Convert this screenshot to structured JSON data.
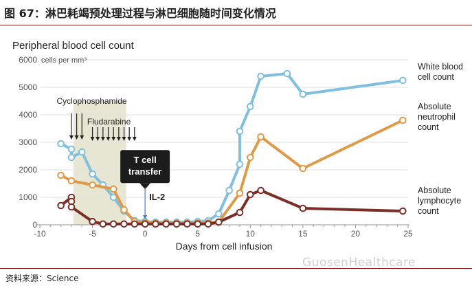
{
  "header": {
    "title": "图 67：淋巴耗竭预处理过程与淋巴细胞随时间变化情况"
  },
  "source": {
    "label": "资料来源：Science"
  },
  "watermark": {
    "text": "GuosenHealthcare"
  },
  "chart_data": {
    "type": "line",
    "title": "Peripheral blood cell count",
    "unit_label": "cells per mm³",
    "xlabel": "Days from cell infusion",
    "xlim": [
      -10,
      25
    ],
    "ylim": [
      0,
      6000
    ],
    "xticks": [
      -10,
      -5,
      0,
      5,
      10,
      15,
      20,
      25
    ],
    "xtick_labels": [
      "-10",
      "-5",
      "0",
      "5",
      "10",
      "15",
      "20",
      "25"
    ],
    "yticks": [
      0,
      1000,
      2000,
      3000,
      4000,
      5000,
      6000
    ],
    "ytick_labels": [
      "0",
      "1000",
      "2000",
      "3000",
      "4000",
      "5000",
      "6000"
    ],
    "grid": true,
    "series": [
      {
        "name": "White blood cell count",
        "color": "#7fbfe0",
        "x": [
          -8,
          -7,
          -7,
          -6,
          -5,
          -4,
          -3,
          -2,
          -1,
          0,
          1,
          2,
          3,
          4,
          5,
          6,
          7,
          8,
          9,
          9,
          10,
          11,
          13.5,
          15,
          24.5
        ],
        "y": [
          2950,
          2750,
          2450,
          2650,
          1850,
          1450,
          1000,
          500,
          150,
          120,
          100,
          100,
          100,
          100,
          120,
          150,
          400,
          1250,
          2200,
          3400,
          4300,
          5400,
          5500,
          4750,
          5250
        ]
      },
      {
        "name": "Absolute neutrophil count",
        "color": "#e09a45",
        "x": [
          -8,
          -7,
          -5,
          -3,
          -2,
          -1,
          0,
          1,
          2,
          3,
          4,
          5,
          6,
          7,
          9,
          10,
          11,
          15,
          24.5
        ],
        "y": [
          1800,
          1600,
          1450,
          1300,
          550,
          120,
          80,
          70,
          60,
          60,
          50,
          60,
          70,
          100,
          1150,
          2450,
          3200,
          2050,
          3800
        ]
      },
      {
        "name": "Absolute lymphocyte count",
        "color": "#7a2e25",
        "x": [
          -8,
          -7,
          -7,
          -7,
          -5,
          -4,
          -3,
          -2,
          -1,
          0,
          1,
          2,
          3,
          4,
          5,
          6,
          7,
          9,
          10,
          11,
          15,
          24.5
        ],
        "y": [
          700,
          1000,
          850,
          650,
          120,
          30,
          30,
          30,
          30,
          30,
          30,
          30,
          30,
          30,
          30,
          30,
          100,
          450,
          1100,
          1250,
          600,
          500
        ]
      }
    ],
    "series_labels": [
      {
        "lines": [
          "White blood",
          "cell count"
        ],
        "color": "#222222"
      },
      {
        "lines": [
          "Absolute",
          "neutrophil",
          "count"
        ],
        "color": "#222222"
      },
      {
        "lines": [
          "Absolute",
          "lymphocyte",
          "count"
        ],
        "color": "#222222"
      }
    ],
    "shaded_band": {
      "from": -6.8,
      "to": -1.8,
      "color": "#e6e6d2"
    },
    "annotations": {
      "cyclophosphamide": {
        "text": "Cyclophosphamide",
        "day_start": -7,
        "day_end": -6
      },
      "fludarabine": {
        "text": "Fludarabine",
        "day_start": -5,
        "day_end": -1
      },
      "tcell": {
        "lines": [
          "T cell",
          "transfer"
        ],
        "day": 0
      },
      "il2": {
        "text": "IL-2",
        "day": 0,
        "color": "#3a7fc0"
      }
    }
  }
}
